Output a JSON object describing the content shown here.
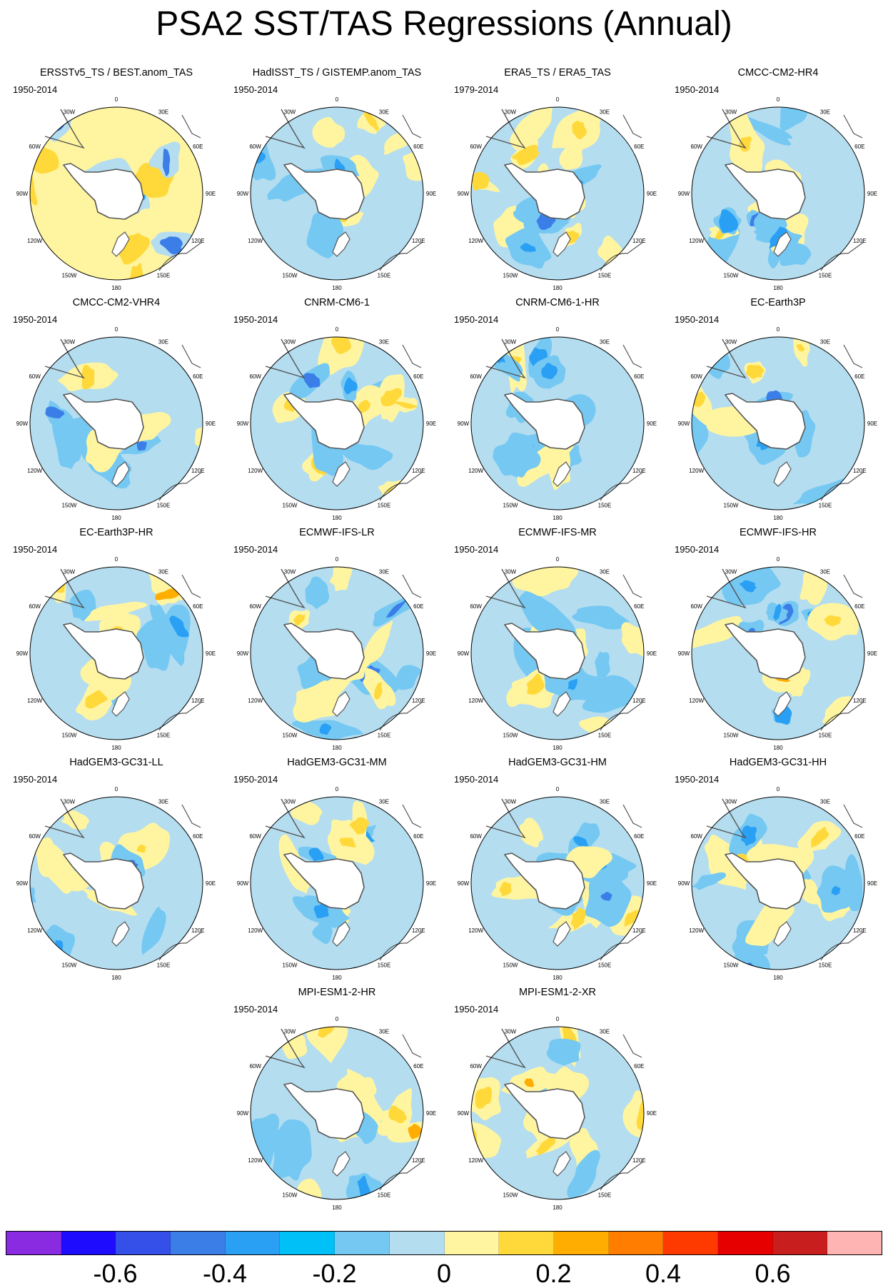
{
  "figure": {
    "title": "PSA2 SST/TAS Regressions (Annual)"
  },
  "map_axes": {
    "projection": "south-polar-stereographic",
    "lon_labels": [
      "0",
      "30E",
      "60E",
      "90E",
      "120E",
      "150E",
      "180",
      "150W",
      "120W",
      "90W",
      "60W",
      "30W"
    ]
  },
  "panels": [
    {
      "title": "ERSSTv5_TS / BEST.anom_TAS",
      "period": "1950-2014"
    },
    {
      "title": "HadISST_TS / GISTEMP.anom_TAS",
      "period": "1950-2014"
    },
    {
      "title": "ERA5_TS / ERA5_TAS",
      "period": "1979-2014"
    },
    {
      "title": "CMCC-CM2-HR4",
      "period": "1950-2014"
    },
    {
      "title": "CMCC-CM2-VHR4",
      "period": "1950-2014"
    },
    {
      "title": "CNRM-CM6-1",
      "period": "1950-2014"
    },
    {
      "title": "CNRM-CM6-1-HR",
      "period": "1950-2014"
    },
    {
      "title": "EC-Earth3P",
      "period": "1950-2014"
    },
    {
      "title": "EC-Earth3P-HR",
      "period": "1950-2014"
    },
    {
      "title": "ECMWF-IFS-LR",
      "period": "1950-2014"
    },
    {
      "title": "ECMWF-IFS-MR",
      "period": "1950-2014"
    },
    {
      "title": "ECMWF-IFS-HR",
      "period": "1950-2014"
    },
    {
      "title": "HadGEM3-GC31-LL",
      "period": "1950-2014"
    },
    {
      "title": "HadGEM3-GC31-MM",
      "period": "1950-2014"
    },
    {
      "title": "HadGEM3-GC31-HM",
      "period": "1950-2014"
    },
    {
      "title": "HadGEM3-GC31-HH",
      "period": "1950-2014"
    },
    {
      "title": "MPI-ESM1-2-HR",
      "period": "1950-2014"
    },
    {
      "title": "MPI-ESM1-2-XR",
      "period": "1950-2014"
    }
  ],
  "colorbar": {
    "colors": [
      "#8a2be2",
      "#1e0cff",
      "#3550e8",
      "#3c7ee8",
      "#2aa0f5",
      "#00c0f8",
      "#75c8f2",
      "#b4ddf0",
      "#fff5a0",
      "#ffd83a",
      "#ffad00",
      "#ff7d00",
      "#ff3a00",
      "#e60000",
      "#c81e1e",
      "#ffb4b4"
    ],
    "tick_labels": [
      "-0.6",
      "-0.4",
      "-0.2",
      "0",
      "0.2",
      "0.4",
      "0.6"
    ]
  }
}
